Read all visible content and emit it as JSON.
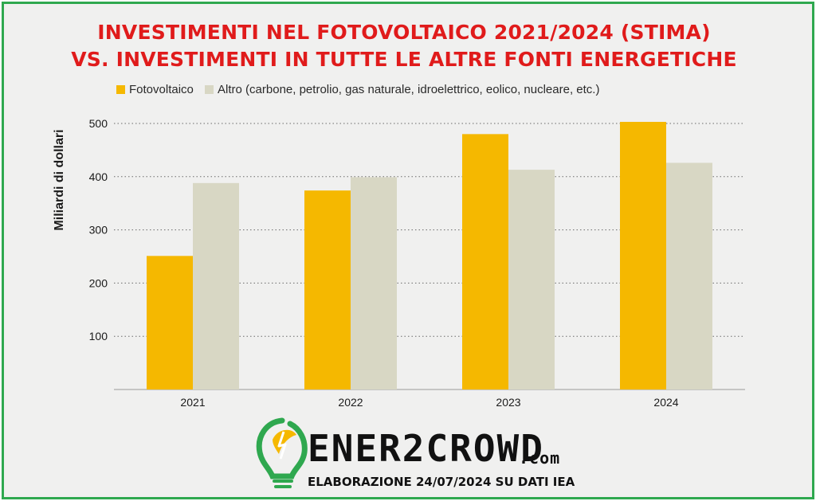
{
  "header": {
    "title_line1": "INVESTIMENTI NEL FOTOVOLTAICO 2021/2024 (STIMA)",
    "title_line2": "VS. INVESTIMENTI IN TUTTE LE ALTRE FONTI ENERGETICHE"
  },
  "chart_data": {
    "type": "bar",
    "title": "INVESTIMENTI NEL FOTOVOLTAICO 2021/2024 (STIMA) VS. INVESTIMENTI IN TUTTE LE ALTRE FONTI ENERGETICHE",
    "categories": [
      "2021",
      "2022",
      "2023",
      "2024"
    ],
    "series": [
      {
        "name": "Fotovoltaico",
        "color": "#f5b800",
        "values": [
          251,
          374,
          480,
          503
        ]
      },
      {
        "name": "Altro (carbone, petrolio, gas naturale, idroelettrico, eolico, nucleare, etc.)",
        "color": "#d8d7c4",
        "values": [
          388,
          399,
          413,
          426
        ]
      }
    ],
    "xlabel": "",
    "ylabel": "Miliardi di dollari",
    "ylim": [
      0,
      500
    ],
    "yticks": [
      100,
      200,
      300,
      400,
      500
    ],
    "grid": "dotted horizontal",
    "legend_position": "top"
  },
  "footer": {
    "brand": "ENER2CROWD",
    "brand_suffix": ".com",
    "source": "ELABORAZIONE 24/07/2024 SU DATI IEA",
    "logo_icon": "lightbulb-leaf-icon"
  }
}
